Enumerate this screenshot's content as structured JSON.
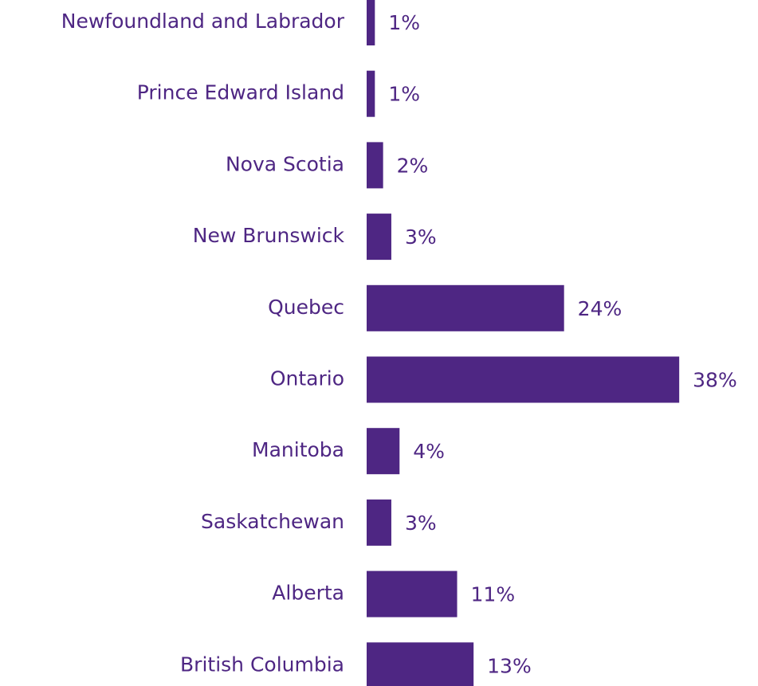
{
  "chart_data": {
    "type": "bar",
    "orientation": "horizontal",
    "categories": [
      "Newfoundland and Labrador",
      "Prince Edward Island",
      "Nova Scotia",
      "New Brunswick",
      "Quebec",
      "Ontario",
      "Manitoba",
      "Saskatchewan",
      "Alberta",
      "British Columbia"
    ],
    "values": [
      1,
      1,
      2,
      3,
      24,
      38,
      4,
      3,
      11,
      13
    ],
    "value_labels": [
      "1%",
      "1%",
      "2%",
      "3%",
      "24%",
      "38%",
      "4%",
      "3%",
      "11%",
      "13%"
    ],
    "color": "#4e2683"
  }
}
